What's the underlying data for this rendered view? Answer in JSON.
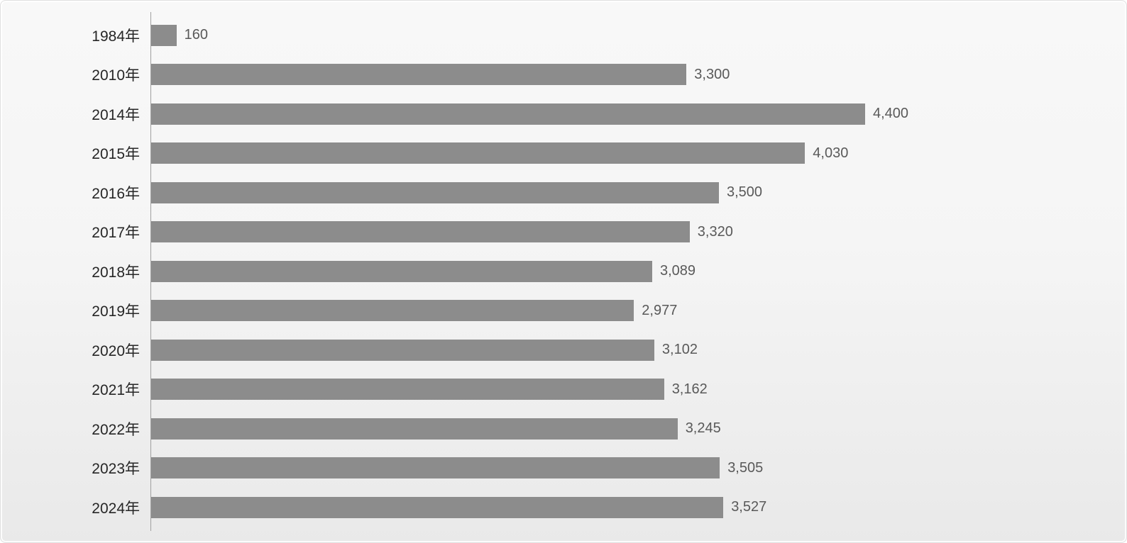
{
  "chart_data": {
    "type": "bar",
    "orientation": "horizontal",
    "title": "",
    "xlabel": "",
    "ylabel": "",
    "grid": false,
    "legend": false,
    "xlim": [
      0,
      5900
    ],
    "categories": [
      "1984年",
      "2010年",
      "2014年",
      "2015年",
      "2016年",
      "2017年",
      "2018年",
      "2019年",
      "2020年",
      "2021年",
      "2022年",
      "2023年",
      "2024年"
    ],
    "values": [
      160,
      3300,
      4400,
      4030,
      3500,
      3320,
      3089,
      2977,
      3102,
      3162,
      3245,
      3505,
      3527
    ],
    "value_labels": [
      "160",
      "3,300",
      "4,400",
      "4,030",
      "3,500",
      "3,320",
      "3,089",
      "2,977",
      "3,102",
      "3,162",
      "3,245",
      "3,505",
      "3,527"
    ],
    "colors": {
      "bar": "#8c8c8c",
      "value_label": "#595959",
      "category_label": "#262626",
      "axis_line": "#a0a0a0",
      "background_top": "#f8f8f8",
      "background_bottom": "#e9e9e9",
      "card_border": "#e0e0e0"
    }
  }
}
